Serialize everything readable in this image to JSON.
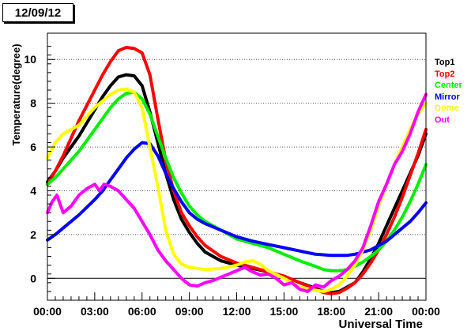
{
  "title": "12/09/12",
  "chart_data": {
    "type": "line",
    "xlabel": "Universal Time",
    "ylabel": "Temperature(degree)",
    "xlim": [
      0,
      24
    ],
    "ylim": [
      -1,
      11.2
    ],
    "x_ticks": [
      0,
      3,
      6,
      9,
      12,
      15,
      18,
      21,
      24
    ],
    "x_tick_labels": [
      "00:00",
      "03:00",
      "06:00",
      "09:00",
      "12:00",
      "15:00",
      "18:00",
      "21:00",
      "00:00"
    ],
    "y_ticks": [
      0,
      2,
      4,
      6,
      8,
      10
    ],
    "y_tick_labels": [
      "0",
      "2",
      "4",
      "6",
      "8",
      "10"
    ],
    "grid": "horizontal dotted",
    "legend_placement": "right",
    "series": [
      {
        "name": "Top1",
        "color": "#000000",
        "points": [
          [
            0,
            4.4
          ],
          [
            0.5,
            4.9
          ],
          [
            1,
            5.5
          ],
          [
            1.5,
            6.0
          ],
          [
            2,
            6.5
          ],
          [
            2.5,
            7.1
          ],
          [
            3,
            7.7
          ],
          [
            3.5,
            8.3
          ],
          [
            4,
            8.8
          ],
          [
            4.5,
            9.2
          ],
          [
            5,
            9.3
          ],
          [
            5.5,
            9.25
          ],
          [
            6,
            8.8
          ],
          [
            6.5,
            7.6
          ],
          [
            7,
            6.2
          ],
          [
            7.5,
            4.8
          ],
          [
            8,
            3.6
          ],
          [
            8.5,
            2.7
          ],
          [
            9,
            2.1
          ],
          [
            9.5,
            1.6
          ],
          [
            10,
            1.2
          ],
          [
            11,
            0.8
          ],
          [
            12,
            0.6
          ],
          [
            13,
            0.45
          ],
          [
            14,
            0.3
          ],
          [
            15,
            0.1
          ],
          [
            16,
            -0.2
          ],
          [
            17,
            -0.45
          ],
          [
            17.5,
            -0.6
          ],
          [
            18,
            -0.65
          ],
          [
            18.5,
            -0.6
          ],
          [
            19,
            -0.4
          ],
          [
            19.5,
            -0.2
          ],
          [
            20,
            0.3
          ],
          [
            20.5,
            0.9
          ],
          [
            21,
            1.6
          ],
          [
            21.5,
            2.4
          ],
          [
            22,
            3.2
          ],
          [
            22.5,
            4.0
          ],
          [
            23,
            4.8
          ],
          [
            23.5,
            5.6
          ],
          [
            24,
            6.6
          ]
        ]
      },
      {
        "name": "Top2",
        "color": "#ff0000",
        "points": [
          [
            0,
            4.3
          ],
          [
            0.5,
            4.9
          ],
          [
            1,
            5.6
          ],
          [
            1.5,
            6.4
          ],
          [
            2,
            7.2
          ],
          [
            2.5,
            7.9
          ],
          [
            3,
            8.6
          ],
          [
            3.5,
            9.3
          ],
          [
            4,
            9.9
          ],
          [
            4.5,
            10.4
          ],
          [
            5,
            10.55
          ],
          [
            5.5,
            10.5
          ],
          [
            6,
            10.3
          ],
          [
            6.5,
            9.3
          ],
          [
            7,
            7.3
          ],
          [
            7.5,
            5.4
          ],
          [
            8,
            4.0
          ],
          [
            8.5,
            3.0
          ],
          [
            9,
            2.4
          ],
          [
            9.5,
            1.9
          ],
          [
            10,
            1.5
          ],
          [
            11,
            1.0
          ],
          [
            12,
            0.7
          ],
          [
            13,
            0.5
          ],
          [
            14,
            0.3
          ],
          [
            15,
            0.1
          ],
          [
            16,
            -0.2
          ],
          [
            17,
            -0.5
          ],
          [
            17.5,
            -0.65
          ],
          [
            18,
            -0.7
          ],
          [
            18.5,
            -0.65
          ],
          [
            19,
            -0.45
          ],
          [
            19.5,
            -0.2
          ],
          [
            20,
            0.2
          ],
          [
            20.5,
            0.7
          ],
          [
            21,
            1.3
          ],
          [
            21.5,
            2.0
          ],
          [
            22,
            2.8
          ],
          [
            22.5,
            3.7
          ],
          [
            23,
            4.7
          ],
          [
            23.5,
            5.7
          ],
          [
            24,
            6.8
          ]
        ]
      },
      {
        "name": "Center",
        "color": "#00ee00",
        "points": [
          [
            0,
            4.3
          ],
          [
            0.5,
            4.6
          ],
          [
            1,
            5.0
          ],
          [
            1.5,
            5.4
          ],
          [
            2,
            5.8
          ],
          [
            2.5,
            6.3
          ],
          [
            3,
            6.8
          ],
          [
            3.5,
            7.3
          ],
          [
            4,
            7.8
          ],
          [
            4.5,
            8.2
          ],
          [
            5,
            8.45
          ],
          [
            5.5,
            8.5
          ],
          [
            6,
            8.2
          ],
          [
            6.5,
            7.5
          ],
          [
            7,
            6.5
          ],
          [
            7.5,
            5.5
          ],
          [
            8,
            4.6
          ],
          [
            8.5,
            3.9
          ],
          [
            9,
            3.3
          ],
          [
            9.5,
            2.9
          ],
          [
            10,
            2.6
          ],
          [
            11,
            2.2
          ],
          [
            12,
            1.8
          ],
          [
            13,
            1.6
          ],
          [
            14,
            1.4
          ],
          [
            15,
            1.1
          ],
          [
            16,
            0.8
          ],
          [
            17,
            0.55
          ],
          [
            17.5,
            0.4
          ],
          [
            18,
            0.35
          ],
          [
            18.5,
            0.35
          ],
          [
            19,
            0.4
          ],
          [
            19.5,
            0.55
          ],
          [
            20,
            0.75
          ],
          [
            20.5,
            1.0
          ],
          [
            21,
            1.3
          ],
          [
            21.5,
            1.7
          ],
          [
            22,
            2.2
          ],
          [
            22.5,
            2.8
          ],
          [
            23,
            3.5
          ],
          [
            23.5,
            4.3
          ],
          [
            24,
            5.2
          ]
        ]
      },
      {
        "name": "Mirror",
        "color": "#0000ff",
        "points": [
          [
            0,
            1.75
          ],
          [
            0.5,
            2.0
          ],
          [
            1,
            2.3
          ],
          [
            1.5,
            2.6
          ],
          [
            2,
            2.9
          ],
          [
            2.5,
            3.25
          ],
          [
            3,
            3.6
          ],
          [
            3.5,
            4.0
          ],
          [
            4,
            4.5
          ],
          [
            4.5,
            5.0
          ],
          [
            5,
            5.5
          ],
          [
            5.5,
            5.9
          ],
          [
            6,
            6.2
          ],
          [
            6.5,
            6.15
          ],
          [
            7,
            5.6
          ],
          [
            7.5,
            4.8
          ],
          [
            8,
            4.1
          ],
          [
            8.5,
            3.5
          ],
          [
            9,
            3.0
          ],
          [
            9.5,
            2.7
          ],
          [
            10,
            2.5
          ],
          [
            11,
            2.2
          ],
          [
            12,
            1.9
          ],
          [
            13,
            1.7
          ],
          [
            14,
            1.55
          ],
          [
            15,
            1.4
          ],
          [
            16,
            1.25
          ],
          [
            17,
            1.1
          ],
          [
            18,
            1.05
          ],
          [
            19,
            1.05
          ],
          [
            19.5,
            1.1
          ],
          [
            20,
            1.2
          ],
          [
            20.5,
            1.3
          ],
          [
            21,
            1.5
          ],
          [
            21.5,
            1.7
          ],
          [
            22,
            2.0
          ],
          [
            22.5,
            2.3
          ],
          [
            23,
            2.6
          ],
          [
            23.5,
            3.0
          ],
          [
            24,
            3.45
          ]
        ]
      },
      {
        "name": "Dome",
        "color": "#ffff00",
        "points": [
          [
            0,
            5.5
          ],
          [
            0.5,
            6.2
          ],
          [
            1,
            6.6
          ],
          [
            1.5,
            6.8
          ],
          [
            2,
            7.0
          ],
          [
            2.5,
            7.4
          ],
          [
            3,
            7.8
          ],
          [
            3.5,
            8.1
          ],
          [
            4,
            8.4
          ],
          [
            4.5,
            8.6
          ],
          [
            5,
            8.65
          ],
          [
            5.5,
            8.5
          ],
          [
            6,
            7.8
          ],
          [
            6.5,
            6.0
          ],
          [
            7,
            4.2
          ],
          [
            7.5,
            2.2
          ],
          [
            8,
            1.1
          ],
          [
            8.5,
            0.65
          ],
          [
            9,
            0.5
          ],
          [
            10,
            0.4
          ],
          [
            11,
            0.45
          ],
          [
            12,
            0.6
          ],
          [
            12.5,
            0.75
          ],
          [
            13,
            0.8
          ],
          [
            13.5,
            0.65
          ],
          [
            14,
            0.35
          ],
          [
            15,
            0.0
          ],
          [
            16,
            -0.4
          ],
          [
            17,
            -0.55
          ],
          [
            17.5,
            -0.6
          ],
          [
            18,
            -0.5
          ],
          [
            18.5,
            -0.3
          ],
          [
            19,
            0.1
          ],
          [
            19.5,
            0.6
          ],
          [
            20,
            1.3
          ],
          [
            20.5,
            2.2
          ],
          [
            21,
            3.3
          ],
          [
            21.5,
            4.3
          ],
          [
            22,
            5.2
          ],
          [
            22.5,
            6.0
          ],
          [
            23,
            6.8
          ],
          [
            23.5,
            7.5
          ],
          [
            24,
            8.0
          ]
        ]
      },
      {
        "name": "Out",
        "color": "#ff00ff",
        "points": [
          [
            0,
            3.0
          ],
          [
            0.3,
            3.5
          ],
          [
            0.6,
            3.8
          ],
          [
            1,
            3.0
          ],
          [
            1.5,
            3.3
          ],
          [
            2,
            3.8
          ],
          [
            2.5,
            4.1
          ],
          [
            3,
            4.3
          ],
          [
            3.3,
            4.0
          ],
          [
            3.6,
            4.3
          ],
          [
            4,
            4.2
          ],
          [
            4.5,
            4.0
          ],
          [
            5,
            3.6
          ],
          [
            5.5,
            3.2
          ],
          [
            6,
            2.6
          ],
          [
            6.5,
            2.0
          ],
          [
            7,
            1.3
          ],
          [
            7.5,
            0.8
          ],
          [
            8,
            0.4
          ],
          [
            8.5,
            0.0
          ],
          [
            9,
            -0.3
          ],
          [
            9.5,
            -0.35
          ],
          [
            10,
            -0.2
          ],
          [
            10.5,
            -0.1
          ],
          [
            11,
            0.05
          ],
          [
            11.5,
            0.2
          ],
          [
            12,
            0.35
          ],
          [
            12.5,
            0.5
          ],
          [
            13,
            0.3
          ],
          [
            13.5,
            0.15
          ],
          [
            14,
            0.2
          ],
          [
            14.5,
            0.0
          ],
          [
            15,
            -0.3
          ],
          [
            15.5,
            -0.2
          ],
          [
            16,
            -0.5
          ],
          [
            16.5,
            -0.6
          ],
          [
            17,
            -0.3
          ],
          [
            17.5,
            -0.4
          ],
          [
            18,
            -0.1
          ],
          [
            18.5,
            0.1
          ],
          [
            19,
            0.4
          ],
          [
            19.5,
            0.8
          ],
          [
            20,
            1.4
          ],
          [
            20.5,
            2.4
          ],
          [
            21,
            3.5
          ],
          [
            21.5,
            4.3
          ],
          [
            22,
            5.2
          ],
          [
            22.5,
            5.8
          ],
          [
            23,
            6.6
          ],
          [
            23.5,
            7.6
          ],
          [
            24,
            8.4
          ]
        ]
      }
    ]
  }
}
